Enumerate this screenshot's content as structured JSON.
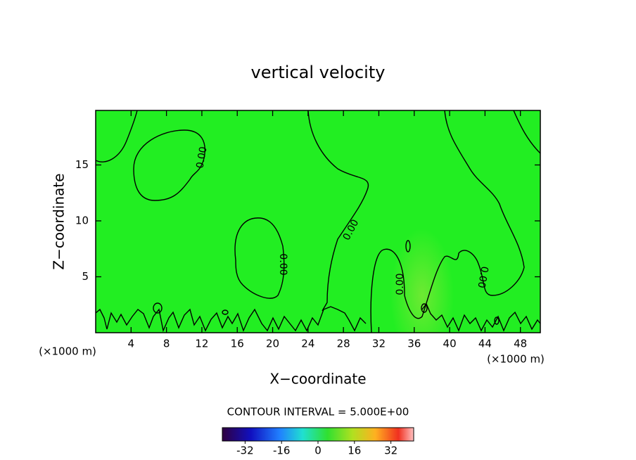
{
  "chart_data": {
    "type": "contour",
    "title": "vertical velocity",
    "x_label": "X−coordinate",
    "y_label": "Z−coordinate",
    "x_unit": "(×1000 m)",
    "xlim": [
      0,
      50.25
    ],
    "ylim": [
      0,
      19.875
    ],
    "xticks": [
      4,
      8,
      12,
      16,
      20,
      24,
      28,
      32,
      36,
      40,
      44,
      48
    ],
    "yticks": [
      5,
      10,
      15
    ],
    "fill_color": "#22ee22",
    "contour_label": "0.00",
    "contour_interval_text": "CONTOUR INTERVAL = 5.000E+00",
    "colorbar": {
      "lim": [
        -42,
        42
      ],
      "ticks": [
        -32,
        -16,
        0,
        16,
        32
      ]
    }
  }
}
